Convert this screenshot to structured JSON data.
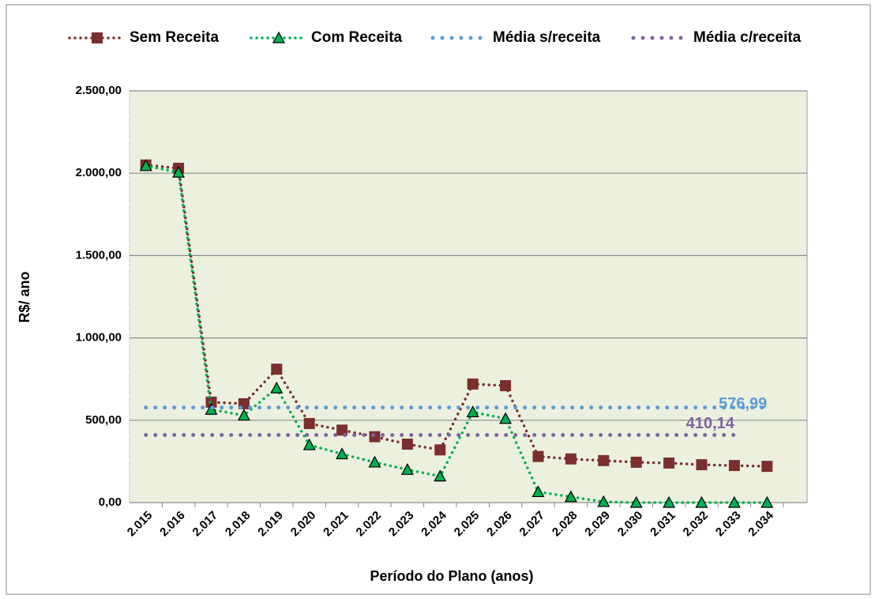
{
  "chart_data": {
    "type": "line",
    "x_label": "Período do Plano (anos)",
    "y_label": "R$/ ano",
    "categories": [
      "2.015",
      "2.016",
      "2.017",
      "2.018",
      "2.019",
      "2.020",
      "2.021",
      "2.022",
      "2.023",
      "2.024",
      "2.025",
      "2.026",
      "2.027",
      "2.028",
      "2.029",
      "2.030",
      "2.031",
      "2.032",
      "2.033",
      "2.034"
    ],
    "series": [
      {
        "name": "Sem Receita",
        "color": "#7b2e2e",
        "marker": "square",
        "values": [
          2050,
          2030,
          610,
          600,
          810,
          480,
          440,
          400,
          355,
          320,
          720,
          710,
          280,
          265,
          255,
          245,
          240,
          230,
          225,
          220
        ]
      },
      {
        "name": "Com Receita",
        "color": "#00b050",
        "marker": "triangle",
        "values": [
          2045,
          2005,
          565,
          530,
          695,
          350,
          295,
          245,
          200,
          160,
          550,
          510,
          65,
          35,
          5,
          0,
          0,
          0,
          0,
          0
        ]
      },
      {
        "name": "Média s/receita",
        "color": "#5b9bd5",
        "marker": "none",
        "values": [
          576.99,
          576.99,
          576.99,
          576.99,
          576.99,
          576.99,
          576.99,
          576.99,
          576.99,
          576.99,
          576.99,
          576.99,
          576.99,
          576.99,
          576.99,
          576.99,
          576.99,
          576.99,
          576.99,
          576.99
        ],
        "value_labels": [
          null,
          null,
          null,
          null,
          null,
          null,
          null,
          null,
          null,
          null,
          null,
          null,
          null,
          null,
          null,
          null,
          null,
          null,
          null,
          "576,99"
        ]
      },
      {
        "name": "Média c/receita",
        "color": "#8064a2",
        "marker": "none",
        "values": [
          410.14,
          410.14,
          410.14,
          410.14,
          410.14,
          410.14,
          410.14,
          410.14,
          410.14,
          410.14,
          410.14,
          410.14,
          410.14,
          410.14,
          410.14,
          410.14,
          410.14,
          410.14,
          410.14,
          null
        ],
        "value_labels": [
          null,
          null,
          null,
          null,
          null,
          null,
          null,
          null,
          null,
          null,
          null,
          null,
          null,
          null,
          null,
          null,
          null,
          null,
          "410,14",
          null
        ]
      }
    ],
    "ylim": [
      0,
      2500
    ],
    "yticks": [
      {
        "value": 0,
        "label": "0,00"
      },
      {
        "value": 500,
        "label": "500,00"
      },
      {
        "value": 1000,
        "label": "1.000,00"
      },
      {
        "value": 1500,
        "label": "1.500,00"
      },
      {
        "value": 2000,
        "label": "2.000,00"
      },
      {
        "value": 2500,
        "label": "2.500,00"
      }
    ],
    "grid": true,
    "legend": "top"
  }
}
